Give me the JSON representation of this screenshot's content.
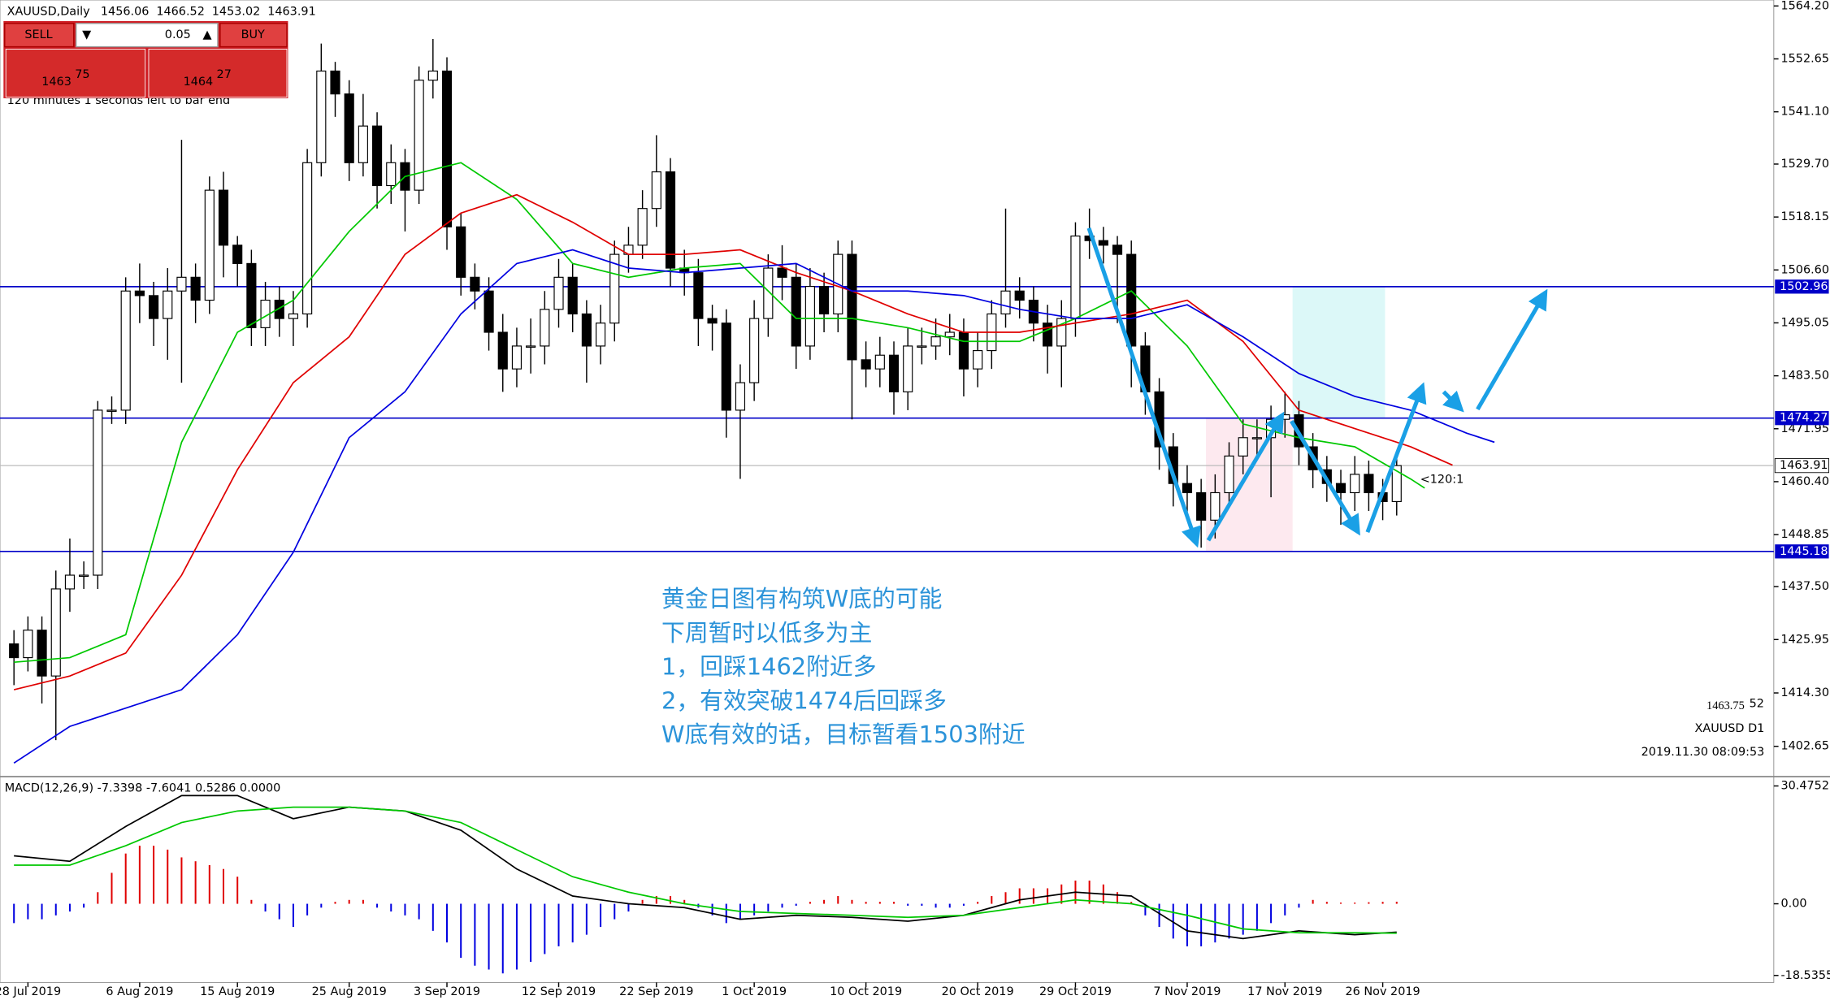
{
  "header": {
    "symbol": "XAUUSD,Daily"
  },
  "trade_panel": {
    "sell": "SELL",
    "buy": "BUY",
    "lot": "0.05",
    "sell_big": "1463",
    "sell_small": "75",
    "buy_big": "1464",
    "buy_small": "27",
    "timer": "120 minutes 1 seconds left to bar end"
  },
  "annotations": {
    "notes": [
      "黄金日图有构筑W底的可能",
      "下周暂时以低多为主",
      "1，回踩1462附近多",
      "2，有效突破1474后回踩多",
      "W底有效的话，目标暂看1503附近"
    ],
    "ratio": "<120:1",
    "bid": "1463.75",
    "bid_sub": "52",
    "symbol_tf": "XAUUSD D1",
    "time": "2019.11.30 08:09:53"
  },
  "chart_data": [
    {
      "type": "candlestick",
      "categories": [
        null,
        "28 Jul 2019",
        null,
        null,
        null,
        null,
        null,
        null,
        null,
        "6 Aug 2019",
        null,
        null,
        null,
        null,
        null,
        null,
        "15 Aug 2019",
        null,
        null,
        null,
        null,
        null,
        null,
        null,
        "25 Aug 2019",
        null,
        null,
        null,
        null,
        null,
        null,
        "3 Sep 2019",
        null,
        null,
        null,
        null,
        null,
        null,
        null,
        "12 Sep 2019",
        null,
        null,
        null,
        null,
        null,
        null,
        "22 Sep 2019",
        null,
        null,
        null,
        null,
        null,
        null,
        "1 Oct 2019",
        null,
        null,
        null,
        null,
        null,
        null,
        null,
        "10 Oct 2019",
        null,
        null,
        null,
        null,
        null,
        null,
        null,
        "20 Oct 2019",
        null,
        null,
        null,
        null,
        null,
        null,
        "29 Oct 2019",
        null,
        null,
        null,
        null,
        null,
        null,
        null,
        "7 Nov 2019",
        null,
        null,
        null,
        null,
        null,
        null,
        "17 Nov 2019",
        null,
        null,
        null,
        null,
        null,
        null,
        "26 Nov 2019",
        null
      ],
      "open": [
        1425,
        1422,
        1428,
        1418,
        1437,
        1440,
        1440,
        1476,
        1476,
        1502,
        1501,
        1496,
        1502,
        1505,
        1500,
        1524,
        1512,
        1508,
        1494,
        1500,
        1496,
        1497,
        1530,
        1550,
        1545,
        1530,
        1538,
        1525,
        1530,
        1524,
        1548,
        1550,
        1516,
        1505,
        1502,
        1493,
        1485,
        1490,
        1490,
        1498,
        1505,
        1497,
        1490,
        1495,
        1510,
        1512,
        1520,
        1528,
        1507,
        1506,
        1496,
        1495,
        1476,
        1482,
        1496,
        1507,
        1505,
        1490,
        1503,
        1497,
        1510,
        1487,
        1485,
        1488,
        1480,
        1490,
        1490,
        1492,
        1493,
        1485,
        1489,
        1497,
        1502,
        1500,
        1495,
        1490,
        1496,
        1514,
        1513,
        1512,
        1510,
        1490,
        1480,
        1468,
        1460,
        1458,
        1452,
        1458,
        1466,
        1470,
        1470,
        1474,
        1475,
        1468,
        1463,
        1460,
        1458,
        1462,
        1458,
        1456.06
      ],
      "high": [
        1428,
        1431,
        1431,
        1441,
        1448,
        1443,
        1478,
        1479,
        1505,
        1508,
        1504,
        1507,
        1535,
        1508,
        1527,
        1528,
        1514,
        1511,
        1504,
        1503,
        1502,
        1533,
        1556,
        1552,
        1548,
        1545,
        1541,
        1534,
        1533,
        1551,
        1557,
        1553,
        1519,
        1508,
        1505,
        1497,
        1494,
        1496,
        1502,
        1509,
        1508,
        1500,
        1499,
        1513,
        1516,
        1524,
        1536,
        1531,
        1511,
        1509,
        1499,
        1498,
        1486,
        1500,
        1510,
        1512,
        1508,
        1507,
        1506,
        1513,
        1513,
        1491,
        1492,
        1491,
        1494,
        1494,
        1496,
        1497,
        1496,
        1493,
        1500,
        1520,
        1505,
        1503,
        1499,
        1500,
        1517,
        1520,
        1516,
        1514,
        1513,
        1493,
        1483,
        1471,
        1464,
        1461,
        1462,
        1469,
        1474,
        1474,
        1477,
        1480,
        1478,
        1471,
        1466,
        1463,
        1466,
        1465,
        1461,
        1466.52
      ],
      "low": [
        1416,
        1419,
        1412,
        1404,
        1432,
        1437,
        1437,
        1473,
        1473,
        1495,
        1490,
        1487,
        1482,
        1495,
        1497,
        1505,
        1503,
        1490,
        1490,
        1492,
        1490,
        1494,
        1527,
        1540,
        1526,
        1527,
        1520,
        1521,
        1515,
        1521,
        1544,
        1511,
        1501,
        1498,
        1489,
        1480,
        1481,
        1484,
        1486,
        1494,
        1493,
        1482,
        1486,
        1491,
        1506,
        1509,
        1516,
        1503,
        1501,
        1490,
        1489,
        1470,
        1461,
        1478,
        1492,
        1500,
        1485,
        1487,
        1493,
        1493,
        1474,
        1481,
        1481,
        1475,
        1476,
        1486,
        1487,
        1488,
        1479,
        1481,
        1485,
        1494,
        1496,
        1491,
        1484,
        1481,
        1492,
        1509,
        1508,
        1495,
        1481,
        1475,
        1463,
        1455,
        1452,
        1446,
        1448,
        1455,
        1462,
        1466,
        1457,
        1470,
        1464,
        1459,
        1456,
        1451,
        1454,
        1454,
        1452,
        1453.02
      ],
      "close": [
        1422,
        1428,
        1418,
        1437,
        1440,
        1440,
        1476,
        1476,
        1502,
        1501,
        1496,
        1502,
        1505,
        1500,
        1524,
        1512,
        1508,
        1494,
        1500,
        1496,
        1497,
        1530,
        1550,
        1545,
        1530,
        1538,
        1525,
        1530,
        1524,
        1548,
        1550,
        1516,
        1505,
        1502,
        1493,
        1485,
        1490,
        1490,
        1498,
        1505,
        1497,
        1490,
        1495,
        1510,
        1512,
        1520,
        1528,
        1507,
        1506,
        1496,
        1495,
        1476,
        1482,
        1496,
        1507,
        1505,
        1490,
        1503,
        1497,
        1510,
        1487,
        1485,
        1488,
        1480,
        1490,
        1490,
        1492,
        1493,
        1485,
        1489,
        1497,
        1502,
        1500,
        1495,
        1490,
        1496,
        1514,
        1513,
        1512,
        1510,
        1490,
        1480,
        1468,
        1460,
        1458,
        1452,
        1458,
        1466,
        1470,
        1470,
        1474,
        1475,
        1468,
        1463,
        1460,
        1458,
        1462,
        1458,
        1456.06,
        1463.91
      ],
      "up_color": "#ffffff",
      "down_color": "#000000",
      "series": [
        {
          "color": "#00c800",
          "x": [
            0,
            4,
            8,
            12,
            16,
            20,
            24,
            28,
            32,
            36,
            40,
            44,
            48,
            52,
            56,
            60,
            64,
            68,
            72,
            76,
            80,
            84,
            88,
            92,
            96,
            100,
            101
          ],
          "values": [
            1421,
            1422,
            1427,
            1469,
            1493,
            1500,
            1515,
            1527,
            1530,
            1522,
            1508,
            1505,
            1507,
            1508,
            1496,
            1496,
            1494,
            1491,
            1491,
            1496,
            1502,
            1490,
            1473,
            1470,
            1468,
            1461,
            1459
          ]
        },
        {
          "color": "#e00000",
          "x": [
            0,
            4,
            8,
            12,
            16,
            20,
            24,
            28,
            32,
            36,
            40,
            44,
            48,
            52,
            56,
            60,
            64,
            68,
            72,
            76,
            80,
            84,
            88,
            92,
            96,
            100,
            103
          ],
          "values": [
            1415,
            1418,
            1423,
            1440,
            1463,
            1482,
            1492,
            1510,
            1519,
            1523,
            1517,
            1510,
            1510,
            1511,
            1506,
            1502,
            1497,
            1493,
            1493,
            1495,
            1497,
            1500,
            1491,
            1476,
            1472,
            1468,
            1464
          ]
        },
        {
          "color": "#0000e0",
          "x": [
            0,
            4,
            8,
            12,
            16,
            20,
            24,
            28,
            32,
            36,
            40,
            44,
            48,
            52,
            56,
            60,
            64,
            68,
            72,
            76,
            80,
            84,
            88,
            92,
            96,
            100,
            104,
            106
          ],
          "values": [
            1399,
            1407,
            1411,
            1415,
            1427,
            1445,
            1470,
            1480,
            1497,
            1508,
            1511,
            1507,
            1506,
            1507,
            1508,
            1502,
            1502,
            1501,
            1498,
            1496,
            1496,
            1499,
            1492,
            1484,
            1479,
            1476,
            1471,
            1469
          ]
        }
      ],
      "hlines": [
        1502.96,
        1474.27,
        1445.18
      ],
      "hline_color": "#0000c8",
      "xlim": [
        -1,
        126
      ],
      "ylim": [
        1396.3,
        1565.5
      ],
      "yticks": [
        {
          "value": 1564.2,
          "label": "1564.20"
        },
        {
          "value": 1552.65,
          "label": "1552.65"
        },
        {
          "value": 1541.1,
          "label": "1541.10"
        },
        {
          "value": 1529.7,
          "label": "1529.70"
        },
        {
          "value": 1518.15,
          "label": "1518.15"
        },
        {
          "value": 1506.6,
          "label": "1506.60"
        },
        {
          "value": 1495.05,
          "label": "1495.05"
        },
        {
          "value": 1483.5,
          "label": "1483.50"
        },
        {
          "value": 1471.95,
          "label": "1471.95"
        },
        {
          "value": 1460.4,
          "label": "1460.40"
        },
        {
          "value": 1448.85,
          "label": "1448.85"
        },
        {
          "value": 1437.5,
          "label": "1437.50"
        },
        {
          "value": 1425.95,
          "label": "1425.95"
        },
        {
          "value": 1414.3,
          "label": "1414.30"
        },
        {
          "value": 1402.65,
          "label": "1402.65"
        }
      ]
    },
    {
      "type": "macd",
      "title": "MACD(12,26,9)",
      "values": [
        -5,
        -4,
        -4,
        -3,
        -2,
        -1,
        3,
        8,
        13,
        15,
        15,
        14,
        12,
        11,
        10,
        9,
        7,
        1,
        -2,
        -4,
        -6,
        -3,
        -1,
        0.5,
        1,
        1,
        -1,
        -2,
        -3,
        -4,
        -7,
        -10,
        -14,
        -16,
        -17,
        -18,
        -17,
        -15,
        -13,
        -11,
        -10,
        -8,
        -6,
        -4,
        -2,
        1,
        2,
        2,
        1,
        -1,
        -3,
        -5,
        -4,
        -3,
        -2,
        -1,
        -0.5,
        0.5,
        1,
        2,
        1,
        0.5,
        0.5,
        0.5,
        -0.5,
        -0.5,
        -1,
        -1,
        -0.5,
        0.5,
        2,
        3,
        4,
        4,
        4,
        5,
        6,
        6,
        5,
        3,
        0.5,
        -3,
        -6,
        -9,
        -11,
        -11,
        -10,
        -9,
        -8,
        -7,
        -5,
        -3,
        -1,
        1,
        0.5,
        0.3,
        0.3,
        0.4,
        0.5,
        0.5286
      ],
      "pos_color": "#e00000",
      "neg_color": "#0000e0",
      "series": [
        {
          "color": "#000000",
          "x": [
            0,
            4,
            8,
            12,
            16,
            20,
            24,
            28,
            32,
            36,
            40,
            44,
            48,
            52,
            56,
            60,
            64,
            68,
            72,
            76,
            80,
            84,
            88,
            92,
            96,
            99
          ],
          "values": [
            12.4,
            11,
            20,
            28,
            28,
            22,
            25,
            24,
            19,
            9,
            2,
            0,
            -1,
            -4,
            -3,
            -3.5,
            -4.5,
            -3,
            1,
            3,
            2,
            -7,
            -9,
            -7,
            -8,
            -7.3398
          ]
        },
        {
          "color": "#00c800",
          "x": [
            0,
            4,
            8,
            12,
            16,
            20,
            24,
            28,
            32,
            36,
            40,
            44,
            48,
            52,
            56,
            60,
            64,
            68,
            72,
            76,
            80,
            84,
            88,
            92,
            96,
            99
          ],
          "values": [
            10,
            10,
            15,
            21,
            24,
            25,
            25,
            24,
            21,
            14,
            7,
            3,
            0,
            -2,
            -2.5,
            -3,
            -3.5,
            -3,
            -1,
            1,
            0,
            -3,
            -6.5,
            -7.5,
            -7.5,
            -7.6041
          ]
        }
      ],
      "extra_label": "0.0000",
      "ylim": [
        -20.35,
        32.59
      ],
      "yticks": [
        30.4752,
        {
          "value": 0,
          "label": "0.00"
        },
        -18.5355
      ]
    }
  ]
}
